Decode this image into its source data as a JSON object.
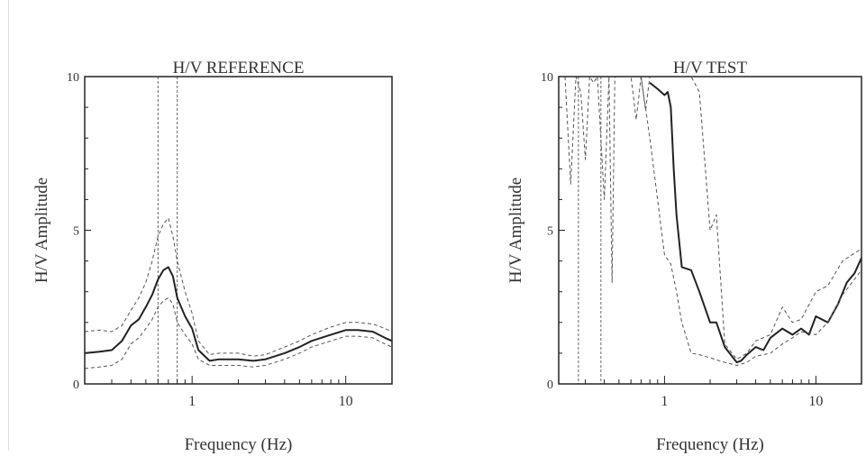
{
  "chart_data": [
    {
      "type": "line",
      "title": "H/V REFERENCE",
      "xlabel": "Frequency (Hz)",
      "ylabel": "H/V Amplitude",
      "x_scale": "log",
      "xlim": [
        0.2,
        20
      ],
      "ylim": [
        0,
        10
      ],
      "x_ticks": [
        {
          "value": 1,
          "label": "1"
        },
        {
          "value": 10,
          "label": "10"
        }
      ],
      "y_ticks": [
        {
          "value": 0,
          "label": "0"
        },
        {
          "value": 5,
          "label": "5"
        },
        {
          "value": 10,
          "label": "10"
        }
      ],
      "vlines": [
        0.6,
        0.8
      ],
      "series": [
        {
          "style": "solid",
          "color": "#222222",
          "x": [
            0.2,
            0.25,
            0.3,
            0.35,
            0.4,
            0.45,
            0.5,
            0.55,
            0.6,
            0.65,
            0.7,
            0.75,
            0.8,
            0.9,
            1.0,
            1.1,
            1.3,
            1.5,
            2,
            2.5,
            3,
            4,
            5,
            6,
            8,
            10,
            12,
            15,
            18,
            20
          ],
          "y": [
            1.0,
            1.05,
            1.1,
            1.4,
            1.9,
            2.1,
            2.5,
            2.9,
            3.4,
            3.7,
            3.8,
            3.5,
            2.8,
            2.2,
            1.8,
            1.1,
            0.75,
            0.8,
            0.8,
            0.75,
            0.8,
            1.0,
            1.2,
            1.4,
            1.6,
            1.75,
            1.75,
            1.7,
            1.5,
            1.4
          ]
        },
        {
          "style": "dashed",
          "color": "#555555",
          "x": [
            0.2,
            0.25,
            0.3,
            0.35,
            0.4,
            0.45,
            0.5,
            0.55,
            0.6,
            0.65,
            0.7,
            0.75,
            0.8,
            0.9,
            1.0,
            1.1,
            1.3,
            1.5,
            2,
            2.5,
            3,
            4,
            5,
            6,
            8,
            10,
            12,
            15,
            18,
            20
          ],
          "y": [
            1.7,
            1.75,
            1.7,
            1.9,
            2.4,
            2.8,
            3.3,
            4.0,
            4.8,
            5.2,
            5.4,
            4.8,
            4.0,
            3.0,
            2.3,
            1.4,
            0.95,
            1.0,
            1.0,
            0.9,
            0.95,
            1.2,
            1.4,
            1.6,
            1.85,
            2.0,
            2.0,
            1.95,
            1.8,
            1.7
          ]
        },
        {
          "style": "dashed",
          "color": "#555555",
          "x": [
            0.2,
            0.25,
            0.3,
            0.35,
            0.4,
            0.45,
            0.5,
            0.55,
            0.6,
            0.65,
            0.7,
            0.75,
            0.8,
            0.9,
            1.0,
            1.1,
            1.3,
            1.5,
            2,
            2.5,
            3,
            4,
            5,
            6,
            8,
            10,
            12,
            15,
            18,
            20
          ],
          "y": [
            0.5,
            0.55,
            0.6,
            0.8,
            1.3,
            1.5,
            1.8,
            2.1,
            2.5,
            2.7,
            2.8,
            2.6,
            2.0,
            1.6,
            1.3,
            0.8,
            0.6,
            0.6,
            0.6,
            0.55,
            0.6,
            0.8,
            1.0,
            1.2,
            1.4,
            1.55,
            1.55,
            1.5,
            1.3,
            1.2
          ]
        }
      ]
    },
    {
      "type": "line",
      "title": "H/V TEST",
      "xlabel": "Frequency (Hz)",
      "ylabel": "H/V Amplitude",
      "x_scale": "log",
      "xlim": [
        0.2,
        20
      ],
      "ylim": [
        0,
        10
      ],
      "x_ticks": [
        {
          "value": 1,
          "label": "1"
        },
        {
          "value": 10,
          "label": "10"
        }
      ],
      "y_ticks": [
        {
          "value": 0,
          "label": "0"
        },
        {
          "value": 5,
          "label": "5"
        },
        {
          "value": 10,
          "label": "10"
        }
      ],
      "vlines": [
        0.27,
        0.38
      ],
      "series": [
        {
          "style": "solid",
          "color": "#222222",
          "x": [
            0.8,
            0.9,
            1.0,
            1.05,
            1.1,
            1.15,
            1.2,
            1.3,
            1.5,
            1.7,
            2.0,
            2.2,
            2.5,
            3.0,
            3.2,
            3.5,
            4,
            4.5,
            5,
            6,
            7,
            8,
            9,
            10,
            12,
            14,
            16,
            18,
            20
          ],
          "y": [
            9.8,
            9.6,
            9.4,
            9.5,
            9.0,
            7.0,
            5.5,
            3.8,
            3.7,
            3.0,
            2.0,
            2.0,
            1.2,
            0.7,
            0.75,
            0.95,
            1.2,
            1.1,
            1.5,
            1.8,
            1.6,
            1.8,
            1.6,
            2.2,
            2.0,
            2.6,
            3.3,
            3.6,
            4.1
          ]
        },
        {
          "style": "dashed",
          "color": "#555555",
          "x": [
            0.2,
            0.22,
            0.24,
            0.26,
            0.28,
            0.3,
            0.32,
            0.34,
            0.36,
            0.4,
            0.43,
            0.45,
            0.47,
            0.5,
            0.55,
            0.6,
            0.65,
            0.7,
            0.75,
            0.8,
            0.9,
            1.0,
            1.05,
            1.1,
            1.15,
            1.2,
            1.3,
            1.5,
            1.7,
            2.0,
            2.2,
            2.5,
            3.0,
            3.5,
            4,
            5,
            6,
            7,
            8,
            10,
            12,
            15,
            20
          ],
          "y": [
            10,
            10,
            6.5,
            10,
            9.5,
            7.3,
            10,
            9.8,
            10,
            6.0,
            10,
            3.3,
            10,
            10,
            10,
            10,
            8.6,
            10,
            8.9,
            10,
            10,
            10,
            10,
            10,
            10,
            10,
            10,
            10,
            9.5,
            5.0,
            5.5,
            1.3,
            0.8,
            1.0,
            1.4,
            1.6,
            2.5,
            2.0,
            2.1,
            3.0,
            3.2,
            4.0,
            4.4
          ]
        },
        {
          "style": "dashed",
          "color": "#555555",
          "x": [
            0.7,
            0.8,
            0.9,
            1.0,
            1.1,
            1.2,
            1.3,
            1.5,
            1.7,
            2.0,
            2.5,
            3.0,
            3.5,
            4,
            5,
            6,
            7,
            8,
            10,
            12,
            15,
            20
          ],
          "y": [
            10,
            8.0,
            6.0,
            4.2,
            3.9,
            3.0,
            2.0,
            1.0,
            0.95,
            0.85,
            0.7,
            0.6,
            0.7,
            0.9,
            1.0,
            1.3,
            1.5,
            1.7,
            1.6,
            2.0,
            2.9,
            3.7
          ]
        }
      ]
    }
  ]
}
